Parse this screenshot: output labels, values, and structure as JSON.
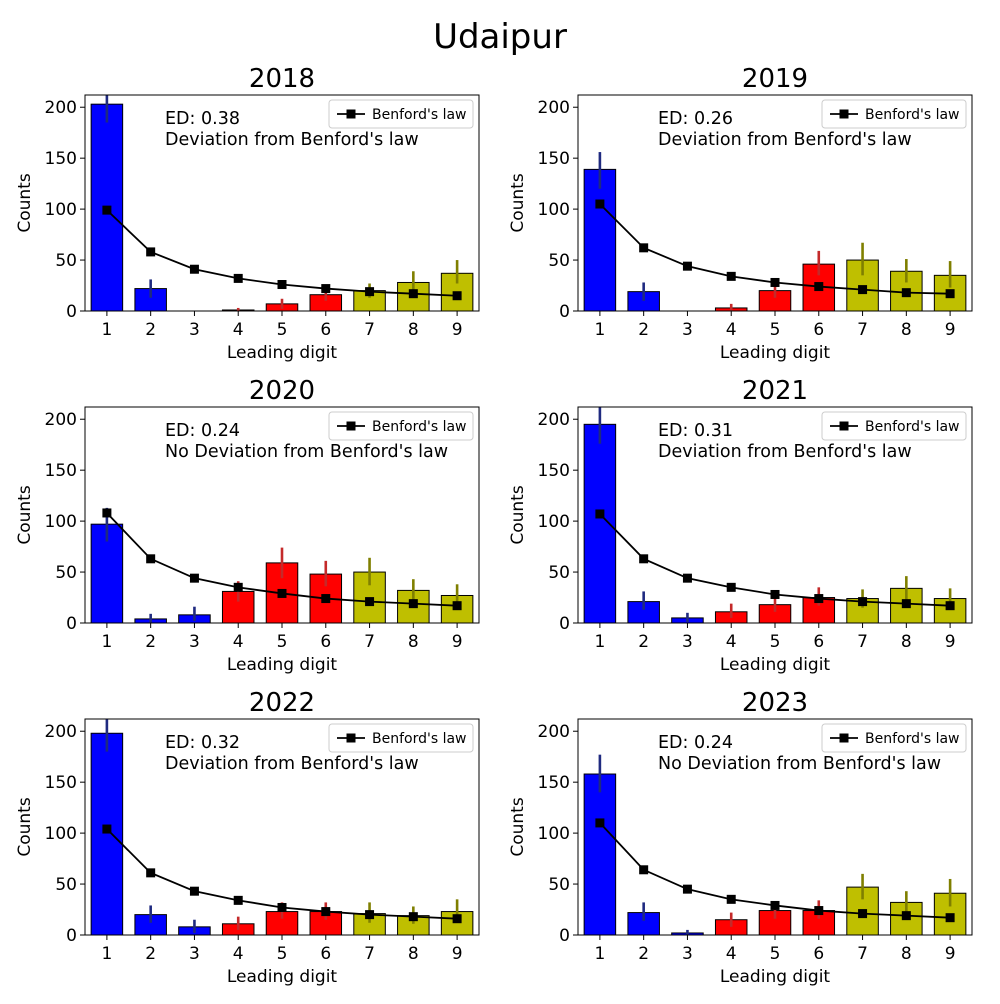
{
  "figure": {
    "title": "Udaipur"
  },
  "colors": {
    "low_digits": "#0000ff",
    "mid_digits": "#ff0000",
    "high_digits": "#bfbf00",
    "err_low": "#1f2a80",
    "err_mid": "#c42a2a",
    "err_high": "#7f7f00",
    "benford_line": "#000000"
  },
  "chart_data": [
    {
      "type": "bar",
      "title": "2018",
      "categories": [
        "1",
        "2",
        "3",
        "4",
        "5",
        "6",
        "7",
        "8",
        "9"
      ],
      "xlabel": "Leading digit",
      "ylabel": "Counts",
      "ylim": [
        0,
        212
      ],
      "yticks": [
        0,
        50,
        100,
        150,
        200
      ],
      "values": [
        203,
        22,
        0,
        1,
        7,
        16,
        20,
        28,
        37
      ],
      "err_low": [
        185,
        13,
        0,
        0,
        2,
        10,
        13,
        17,
        27
      ],
      "err_high": [
        215,
        31,
        0,
        3,
        12,
        22,
        27,
        39,
        50
      ],
      "benford": [
        99,
        58,
        41,
        32,
        26,
        22,
        19,
        17,
        15
      ],
      "legend": {
        "label": "Benford's law",
        "position": "top-right"
      },
      "annotation": [
        "ED: 0.38",
        "Deviation from Benford's law"
      ]
    },
    {
      "type": "bar",
      "title": "2019",
      "categories": [
        "1",
        "2",
        "3",
        "4",
        "5",
        "6",
        "7",
        "8",
        "9"
      ],
      "xlabel": "Leading digit",
      "ylabel": "Counts",
      "ylim": [
        0,
        212
      ],
      "yticks": [
        0,
        50,
        100,
        150,
        200
      ],
      "values": [
        139,
        19,
        0,
        3,
        20,
        46,
        50,
        39,
        35
      ],
      "err_low": [
        120,
        10,
        0,
        0,
        13,
        35,
        35,
        28,
        23
      ],
      "err_high": [
        156,
        28,
        0,
        7,
        28,
        59,
        67,
        51,
        49
      ],
      "benford": [
        105,
        62,
        44,
        34,
        28,
        24,
        21,
        18,
        17
      ],
      "legend": {
        "label": "Benford's law",
        "position": "top-right"
      },
      "annotation": [
        "ED: 0.26",
        "Deviation from Benford's law"
      ]
    },
    {
      "type": "bar",
      "title": "2020",
      "categories": [
        "1",
        "2",
        "3",
        "4",
        "5",
        "6",
        "7",
        "8",
        "9"
      ],
      "xlabel": "Leading digit",
      "ylabel": "Counts",
      "ylim": [
        0,
        212
      ],
      "yticks": [
        0,
        50,
        100,
        150,
        200
      ],
      "values": [
        97,
        4,
        8,
        31,
        59,
        48,
        50,
        32,
        27
      ],
      "err_low": [
        80,
        0,
        2,
        21,
        44,
        36,
        37,
        21,
        17
      ],
      "err_high": [
        113,
        9,
        16,
        41,
        74,
        61,
        64,
        43,
        38
      ],
      "benford": [
        108,
        63,
        44,
        35,
        29,
        24,
        21,
        19,
        17
      ],
      "legend": {
        "label": "Benford's law",
        "position": "top-right"
      },
      "annotation": [
        "ED: 0.24",
        "No Deviation from Benford's law"
      ]
    },
    {
      "type": "bar",
      "title": "2021",
      "categories": [
        "1",
        "2",
        "3",
        "4",
        "5",
        "6",
        "7",
        "8",
        "9"
      ],
      "xlabel": "Leading digit",
      "ylabel": "Counts",
      "ylim": [
        0,
        212
      ],
      "yticks": [
        0,
        50,
        100,
        150,
        200
      ],
      "values": [
        195,
        21,
        5,
        11,
        18,
        25,
        24,
        34,
        24
      ],
      "err_low": [
        176,
        13,
        1,
        5,
        11,
        17,
        15,
        23,
        15
      ],
      "err_high": [
        215,
        31,
        10,
        19,
        27,
        35,
        33,
        46,
        34
      ],
      "benford": [
        107,
        63,
        44,
        35,
        28,
        24,
        21,
        19,
        17
      ],
      "legend": {
        "label": "Benford's law",
        "position": "top-right"
      },
      "annotation": [
        "ED: 0.31",
        "Deviation from Benford's law"
      ]
    },
    {
      "type": "bar",
      "title": "2022",
      "categories": [
        "1",
        "2",
        "3",
        "4",
        "5",
        "6",
        "7",
        "8",
        "9"
      ],
      "xlabel": "Leading digit",
      "ylabel": "Counts",
      "ylim": [
        0,
        212
      ],
      "yticks": [
        0,
        50,
        100,
        150,
        200
      ],
      "values": [
        198,
        20,
        8,
        11,
        23,
        23,
        21,
        19,
        23
      ],
      "err_low": [
        180,
        12,
        2,
        5,
        16,
        15,
        12,
        11,
        14
      ],
      "err_high": [
        215,
        29,
        15,
        18,
        32,
        32,
        32,
        28,
        35
      ],
      "benford": [
        104,
        61,
        43,
        34,
        27,
        23,
        20,
        18,
        16
      ],
      "legend": {
        "label": "Benford's law",
        "position": "top-right"
      },
      "annotation": [
        "ED: 0.32",
        "Deviation from Benford's law"
      ]
    },
    {
      "type": "bar",
      "title": "2023",
      "categories": [
        "1",
        "2",
        "3",
        "4",
        "5",
        "6",
        "7",
        "8",
        "9"
      ],
      "xlabel": "Leading digit",
      "ylabel": "Counts",
      "ylim": [
        0,
        212
      ],
      "yticks": [
        0,
        50,
        100,
        150,
        200
      ],
      "values": [
        158,
        22,
        2,
        15,
        24,
        24,
        47,
        32,
        41
      ],
      "err_low": [
        140,
        14,
        0,
        8,
        16,
        16,
        35,
        22,
        28
      ],
      "err_high": [
        177,
        32,
        5,
        22,
        33,
        34,
        60,
        43,
        55
      ],
      "benford": [
        110,
        64,
        45,
        35,
        29,
        24,
        21,
        19,
        17
      ],
      "legend": {
        "label": "Benford's law",
        "position": "top-right"
      },
      "annotation": [
        "ED: 0.24",
        "No Deviation from Benford's law"
      ]
    }
  ]
}
